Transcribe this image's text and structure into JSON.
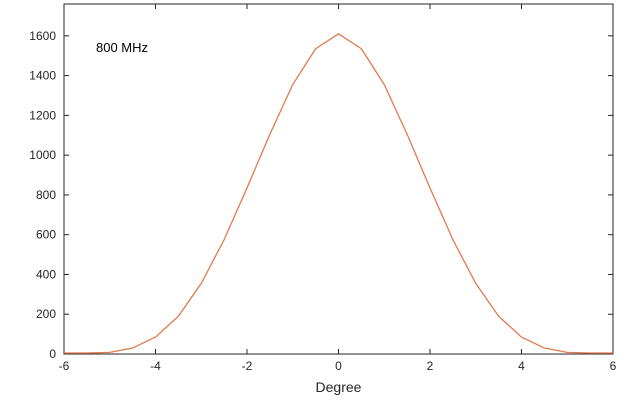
{
  "chart_data": {
    "type": "line",
    "title": "",
    "xlabel": "Degree",
    "ylabel": "",
    "annotation": "800 MHz",
    "xlim": [
      -6,
      6
    ],
    "ylim": [
      0,
      1760
    ],
    "grid": false,
    "x_ticks": [
      -6,
      -4,
      -2,
      0,
      2,
      4,
      6
    ],
    "y_ticks": [
      0,
      200,
      400,
      600,
      800,
      1000,
      1200,
      1400,
      1600
    ],
    "x_tick_labels": [
      "-6",
      "-4",
      "-2",
      "0",
      "2",
      "4",
      "6"
    ],
    "y_tick_labels": [
      "0",
      "200",
      "400",
      "600",
      "800",
      "1000",
      "1200",
      "1400",
      "1600"
    ],
    "series": [
      {
        "color": "#e07a4f",
        "x": [
          -6,
          -5.5,
          -5,
          -4.5,
          -4,
          -3.5,
          -3,
          -2.5,
          -2,
          -1.5,
          -1,
          -0.5,
          0,
          0.5,
          1,
          1.5,
          2,
          2.5,
          3,
          3.5,
          4,
          4.5,
          5,
          5.5,
          6
        ],
        "y": [
          5,
          5,
          8,
          30,
          85,
          190,
          355,
          575,
          835,
          1105,
          1355,
          1535,
          1610,
          1535,
          1355,
          1105,
          835,
          575,
          355,
          190,
          85,
          30,
          8,
          5,
          5
        ]
      }
    ]
  },
  "colors": {
    "line": "#e07a4f",
    "axis": "#262626",
    "background": "#ffffff"
  }
}
